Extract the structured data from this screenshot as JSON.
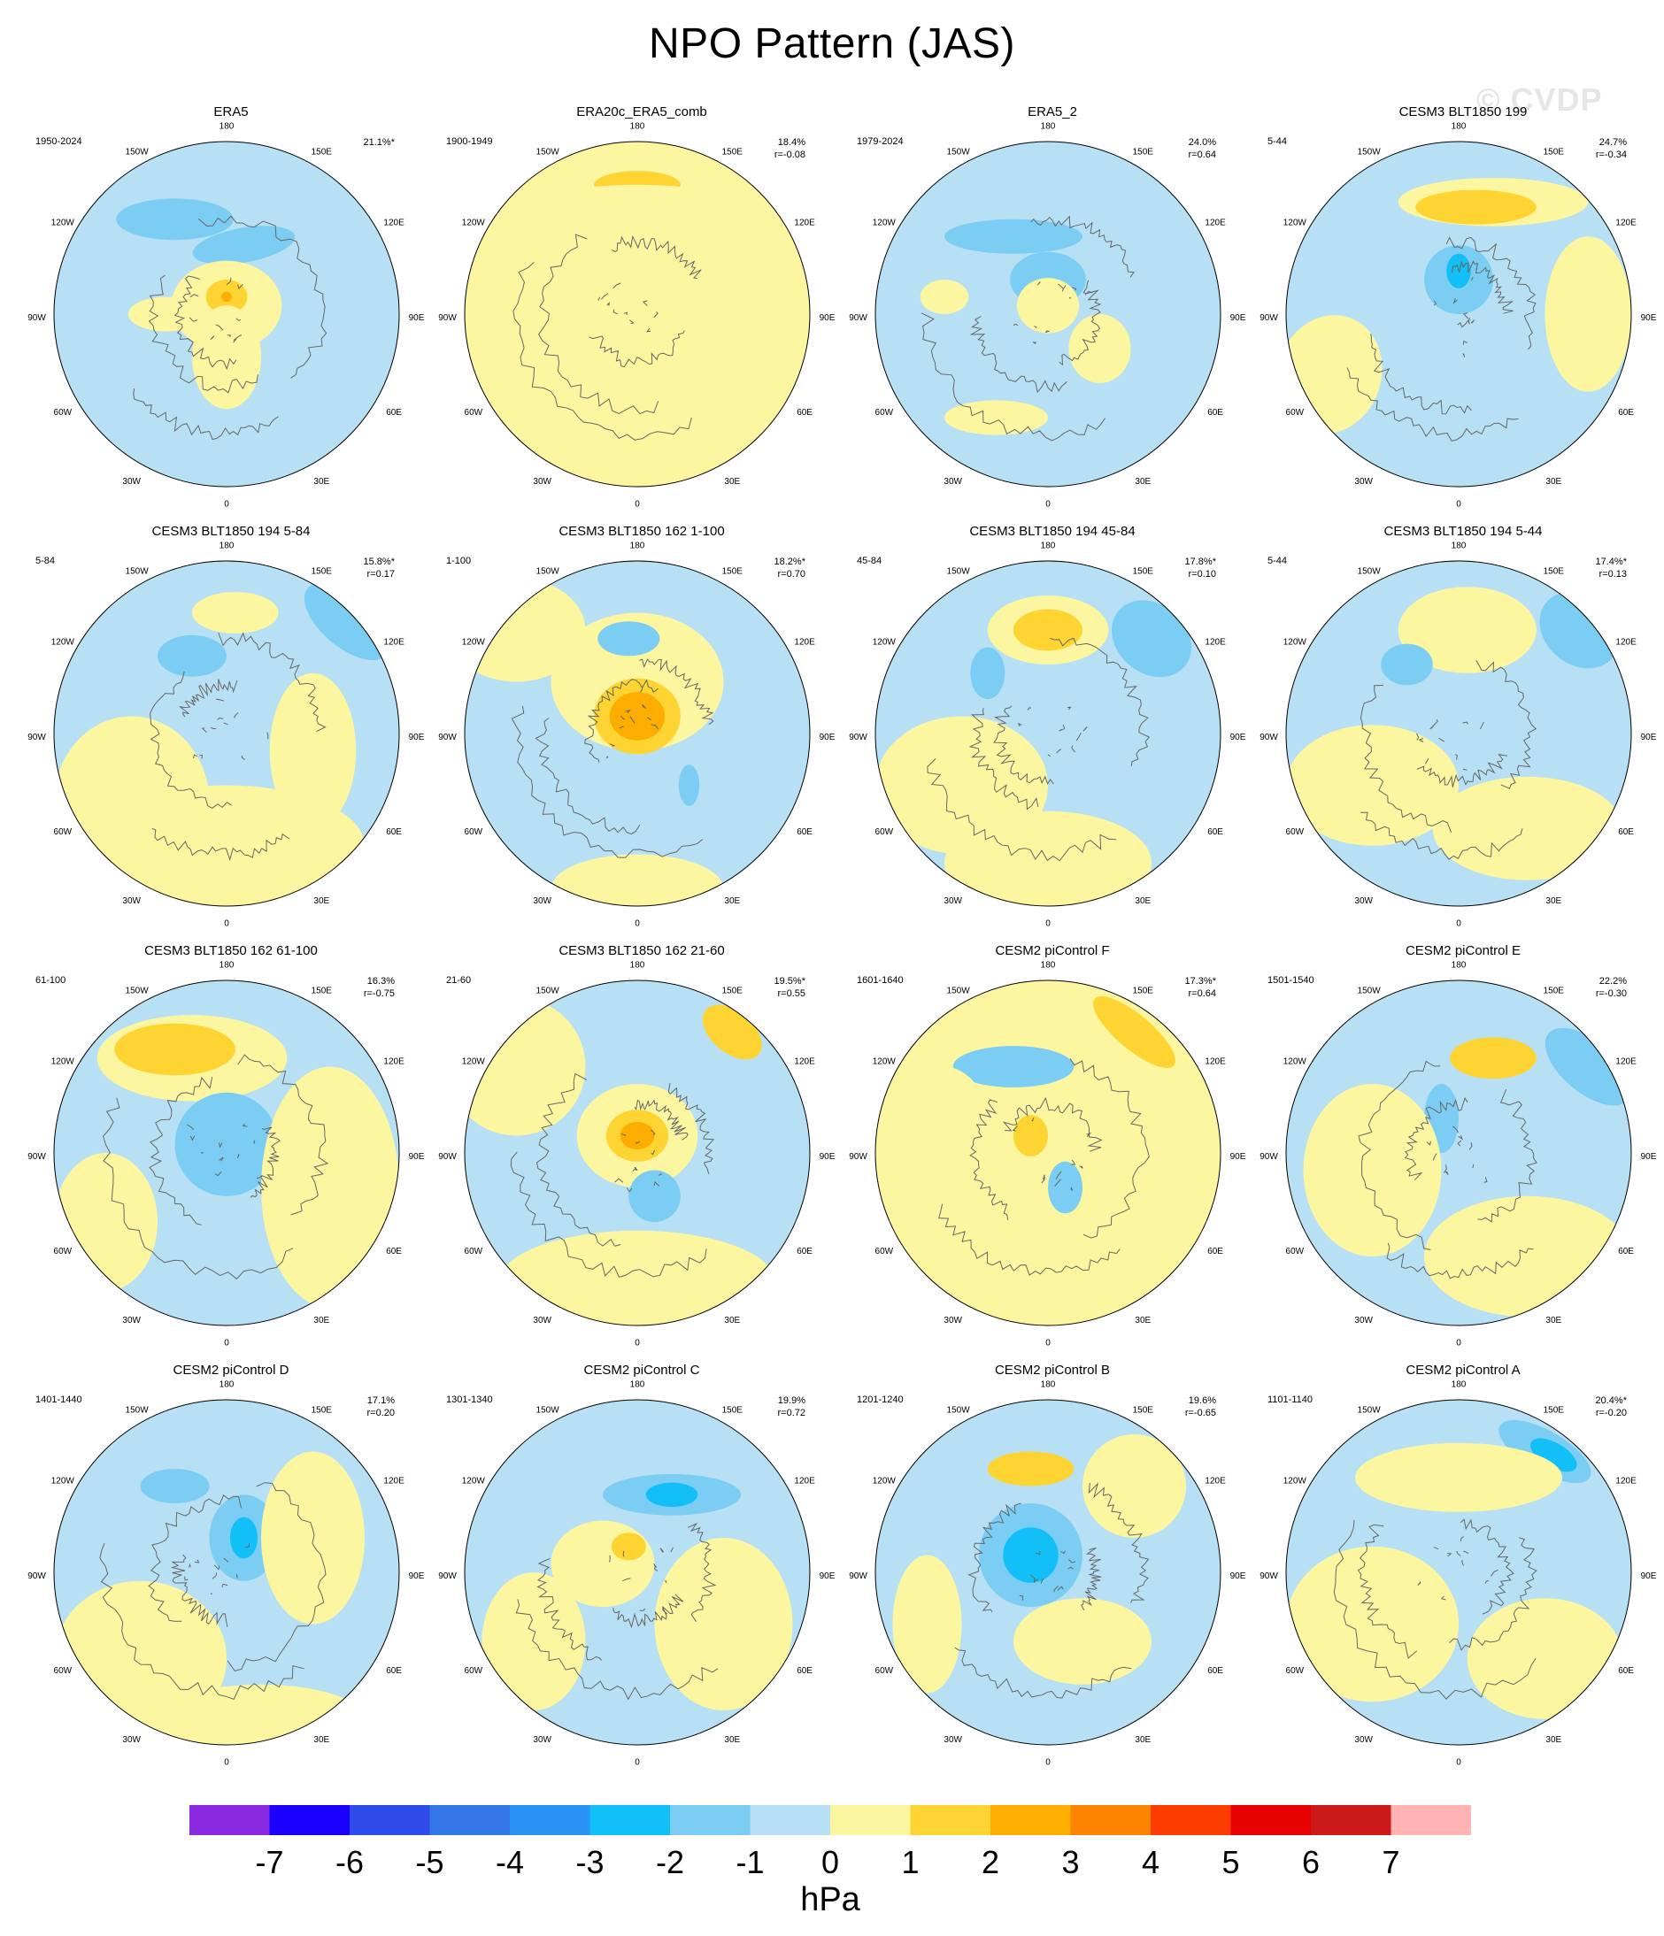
{
  "title": "NPO Pattern (JAS)",
  "watermark": "© CVDP",
  "colors": {
    "neg7": "#8a2be2",
    "neg6": "#1c00ff",
    "neg5": "#2e4cea",
    "neg4": "#3477e8",
    "neg3": "#2a93f5",
    "neg2": "#12bff7",
    "neg1": "#7ccdf3",
    "zero_neg": "#b7e0f4",
    "zero_pos": "#fdf6a0",
    "pos1": "#fdd431",
    "pos2": "#fdac00",
    "pos3": "#fd8400",
    "pos4": "#fd3d00",
    "pos5": "#e60000",
    "pos6": "#cc1919",
    "pos7": "#ffb3b3",
    "coast": "#666666"
  },
  "map_labels": {
    "top": "180",
    "bottom": "0",
    "left_upper": "150W",
    "left_mid_upper": "120W",
    "left_mid": "90W",
    "left_mid_lower": "60W",
    "left_lower": "30W",
    "right_upper": "150E",
    "right_mid_upper": "120E",
    "right_mid": "90E",
    "right_mid_lower": "60E",
    "right_lower": "30E"
  },
  "panels": [
    {
      "title": "ERA5",
      "years": "1950-2024",
      "variance": "21.1%*",
      "r": ""
    },
    {
      "title": "ERA20c_ERA5_comb",
      "years": "1900-1949",
      "variance": "18.4%",
      "r": "r=-0.08"
    },
    {
      "title": "ERA5_2",
      "years": "1979-2024",
      "variance": "24.0%",
      "r": "r=0.64"
    },
    {
      "title": "CESM3 BLT1850 199",
      "years": "5-44",
      "variance": "24.7%",
      "r": "r=-0.34"
    },
    {
      "title": "CESM3 BLT1850 194 5-84",
      "years": "5-84",
      "variance": "15.8%*",
      "r": "r=0.17"
    },
    {
      "title": "CESM3 BLT1850 162 1-100",
      "years": "1-100",
      "variance": "18.2%*",
      "r": "r=0.70"
    },
    {
      "title": "CESM3 BLT1850 194 45-84",
      "years": "45-84",
      "variance": "17.8%*",
      "r": "r=0.10"
    },
    {
      "title": "CESM3 BLT1850 194 5-44",
      "years": "5-44",
      "variance": "17.4%*",
      "r": "r=0.13"
    },
    {
      "title": "CESM3 BLT1850 162 61-100",
      "years": "61-100",
      "variance": "16.3%",
      "r": "r=-0.75"
    },
    {
      "title": "CESM3 BLT1850 162 21-60",
      "years": "21-60",
      "variance": "19.5%*",
      "r": "r=0.55"
    },
    {
      "title": "CESM2 piControl F",
      "years": "1601-1640",
      "variance": "17.3%*",
      "r": "r=0.64"
    },
    {
      "title": "CESM2 piControl E",
      "years": "1501-1540",
      "variance": "22.2%",
      "r": "r=-0.30"
    },
    {
      "title": "CESM2 piControl D",
      "years": "1401-1440",
      "variance": "17.1%",
      "r": "r=0.20"
    },
    {
      "title": "CESM2 piControl C",
      "years": "1301-1340",
      "variance": "19.9%",
      "r": "r=0.72"
    },
    {
      "title": "CESM2 piControl B",
      "years": "1201-1240",
      "variance": "19.6%",
      "r": "r=-0.65"
    },
    {
      "title": "CESM2 piControl A",
      "years": "1101-1140",
      "variance": "20.4%*",
      "r": "r=-0.20"
    }
  ],
  "colorbar": {
    "ticks": [
      "-7",
      "-6",
      "-5",
      "-4",
      "-3",
      "-2",
      "-1",
      "0",
      "1",
      "2",
      "3",
      "4",
      "5",
      "6",
      "7"
    ],
    "units": "hPa"
  }
}
